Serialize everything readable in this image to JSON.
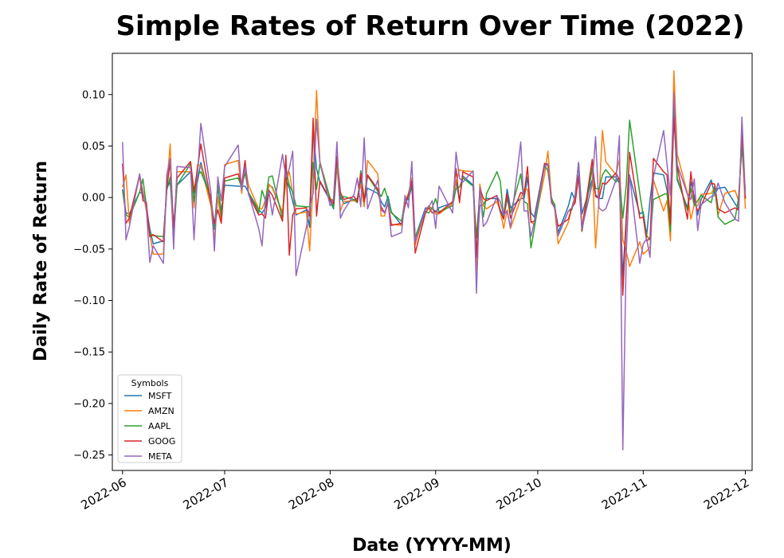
{
  "chart_data": {
    "type": "line",
    "title": "Simple Rates of Return Over Time (2022)",
    "xlabel": "Date (YYYY-MM)",
    "ylabel": "Daily Rate of Return",
    "x_ticks": [
      "2022-06",
      "2022-07",
      "2022-08",
      "2022-09",
      "2022-10",
      "2022-11",
      "2022-12"
    ],
    "y_ticks": [
      0.1,
      0.05,
      0.0,
      -0.05,
      -0.1,
      -0.15,
      -0.2,
      -0.25
    ],
    "y_tick_labels": [
      "0.10",
      "0.05",
      "0.00",
      "−0.05",
      "−0.10",
      "−0.15",
      "−0.20",
      "−0.25"
    ],
    "xlim": [
      "2022-05-29",
      "2022-12-03"
    ],
    "ylim": [
      -0.265,
      0.14
    ],
    "grid": false,
    "legend": {
      "title": "Symbols",
      "placement": "lower-left"
    },
    "x": [
      "2022-06-01",
      "2022-06-02",
      "2022-06-03",
      "2022-06-06",
      "2022-06-07",
      "2022-06-08",
      "2022-06-09",
      "2022-06-10",
      "2022-06-13",
      "2022-06-14",
      "2022-06-15",
      "2022-06-16",
      "2022-06-17",
      "2022-06-21",
      "2022-06-22",
      "2022-06-23",
      "2022-06-24",
      "2022-06-27",
      "2022-06-28",
      "2022-06-29",
      "2022-06-30",
      "2022-07-01",
      "2022-07-05",
      "2022-07-06",
      "2022-07-07",
      "2022-07-08",
      "2022-07-11",
      "2022-07-12",
      "2022-07-13",
      "2022-07-14",
      "2022-07-15",
      "2022-07-18",
      "2022-07-19",
      "2022-07-20",
      "2022-07-21",
      "2022-07-22",
      "2022-07-25",
      "2022-07-26",
      "2022-07-27",
      "2022-07-28",
      "2022-07-29",
      "2022-08-01",
      "2022-08-02",
      "2022-08-03",
      "2022-08-04",
      "2022-08-05",
      "2022-08-08",
      "2022-08-09",
      "2022-08-10",
      "2022-08-11",
      "2022-08-12",
      "2022-08-15",
      "2022-08-16",
      "2022-08-17",
      "2022-08-18",
      "2022-08-19",
      "2022-08-22",
      "2022-08-23",
      "2022-08-24",
      "2022-08-25",
      "2022-08-26",
      "2022-08-29",
      "2022-08-30",
      "2022-08-31",
      "2022-09-01",
      "2022-09-02",
      "2022-09-06",
      "2022-09-07",
      "2022-09-08",
      "2022-09-09",
      "2022-09-12",
      "2022-09-13",
      "2022-09-14",
      "2022-09-15",
      "2022-09-16",
      "2022-09-19",
      "2022-09-20",
      "2022-09-21",
      "2022-09-22",
      "2022-09-23",
      "2022-09-26",
      "2022-09-27",
      "2022-09-28",
      "2022-09-29",
      "2022-09-30",
      "2022-10-03",
      "2022-10-04",
      "2022-10-05",
      "2022-10-06",
      "2022-10-07",
      "2022-10-10",
      "2022-10-11",
      "2022-10-12",
      "2022-10-13",
      "2022-10-14",
      "2022-10-17",
      "2022-10-18",
      "2022-10-19",
      "2022-10-20",
      "2022-10-21",
      "2022-10-24",
      "2022-10-25",
      "2022-10-26",
      "2022-10-27",
      "2022-10-28",
      "2022-10-31",
      "2022-11-01",
      "2022-11-02",
      "2022-11-03",
      "2022-11-04",
      "2022-11-07",
      "2022-11-08",
      "2022-11-09",
      "2022-11-10",
      "2022-11-11",
      "2022-11-14",
      "2022-11-15",
      "2022-11-16",
      "2022-11-17",
      "2022-11-18",
      "2022-11-21",
      "2022-11-22",
      "2022-11-23",
      "2022-11-25",
      "2022-11-28",
      "2022-11-29",
      "2022-11-30",
      "2022-12-01"
    ],
    "series": [
      {
        "name": "MSFT",
        "color": "#1f77b4",
        "values": [
          0.008,
          -0.015,
          -0.016,
          0.005,
          0.004,
          -0.01,
          -0.03,
          -0.045,
          -0.042,
          0.009,
          0.015,
          -0.027,
          0.012,
          0.025,
          0.004,
          0.015,
          0.034,
          -0.005,
          -0.031,
          0.01,
          -0.013,
          0.012,
          0.011,
          0.011,
          0.011,
          0.005,
          -0.012,
          -0.015,
          -0.01,
          0.012,
          0.01,
          -0.015,
          0.018,
          0.009,
          -0.004,
          -0.017,
          -0.012,
          -0.029,
          0.067,
          0.028,
          0.015,
          -0.003,
          -0.011,
          0.031,
          0.002,
          -0.006,
          -0.002,
          -0.001,
          0.018,
          -0.004,
          0.009,
          0.004,
          -0.004,
          -0.009,
          0.001,
          -0.014,
          -0.027,
          -0.003,
          -0.002,
          0.011,
          -0.039,
          -0.01,
          -0.01,
          -0.01,
          -0.014,
          -0.01,
          -0.005,
          0.016,
          -0.003,
          0.021,
          0.012,
          -0.055,
          -0.008,
          -0.007,
          -0.001,
          -0.001,
          -0.012,
          -0.018,
          0.008,
          -0.01,
          -0.001,
          -0.001,
          0.02,
          -0.015,
          -0.019,
          0.033,
          0.031,
          0.0,
          -0.009,
          -0.034,
          -0.008,
          0.005,
          -0.003,
          0.034,
          -0.016,
          0.017,
          0.003,
          -0.001,
          -0.001,
          0.02,
          0.02,
          0.014,
          -0.077,
          -0.019,
          0.021,
          -0.016,
          -0.014,
          -0.037,
          -0.002,
          0.024,
          0.022,
          0.007,
          -0.019,
          0.082,
          0.017,
          -0.01,
          0.015,
          0.001,
          -0.017,
          -0.002,
          0.017,
          0.003,
          0.009,
          0.01,
          -0.006,
          -0.011,
          0.062,
          -0.001
        ]
      },
      {
        "name": "AMZN",
        "color": "#ff7f0e",
        "values": [
          0.01,
          0.022,
          -0.025,
          0.021,
          0.006,
          -0.013,
          -0.035,
          -0.055,
          -0.055,
          0.011,
          0.052,
          -0.043,
          0.025,
          0.025,
          -0.01,
          0.032,
          0.031,
          -0.009,
          -0.042,
          0.001,
          -0.024,
          0.032,
          0.036,
          0.004,
          0.031,
          0.012,
          -0.011,
          -0.011,
          -0.002,
          0.013,
          0.009,
          -0.014,
          0.015,
          0.025,
          0.004,
          -0.016,
          -0.014,
          -0.052,
          0.015,
          0.104,
          0.035,
          -0.001,
          -0.003,
          0.032,
          -0.013,
          -0.004,
          -0.003,
          -0.004,
          0.013,
          -0.009,
          0.036,
          0.023,
          -0.018,
          -0.018,
          -0.003,
          -0.026,
          -0.027,
          -0.004,
          0.004,
          0.019,
          -0.046,
          -0.012,
          -0.008,
          -0.011,
          -0.016,
          -0.016,
          -0.006,
          0.015,
          0.027,
          0.026,
          0.025,
          -0.07,
          0.013,
          -0.008,
          -0.011,
          -0.004,
          -0.013,
          -0.03,
          -0.012,
          -0.03,
          -0.001,
          0.008,
          0.008,
          -0.023,
          -0.027,
          0.022,
          0.045,
          0.001,
          -0.012,
          -0.045,
          -0.024,
          -0.01,
          -0.003,
          0.02,
          -0.028,
          0.033,
          -0.049,
          -0.002,
          0.065,
          0.035,
          0.022,
          0.037,
          -0.041,
          -0.052,
          -0.067,
          -0.043,
          -0.055,
          -0.052,
          -0.048,
          0.017,
          -0.013,
          -0.003,
          -0.042,
          0.123,
          0.042,
          0.004,
          -0.021,
          -0.007,
          -0.008,
          0.003,
          0.004,
          0.01,
          -0.017,
          0.004,
          0.007,
          -0.003,
          0.056,
          -0.011
        ]
      },
      {
        "name": "AAPL",
        "color": "#2ca02c",
        "values": [
          0.007,
          -0.017,
          -0.019,
          0.005,
          0.018,
          -0.008,
          -0.035,
          -0.037,
          -0.038,
          0.007,
          0.02,
          -0.04,
          0.012,
          0.033,
          -0.004,
          0.022,
          0.025,
          0.0,
          -0.03,
          0.013,
          -0.018,
          0.016,
          0.019,
          0.01,
          0.024,
          0.005,
          -0.015,
          0.007,
          -0.003,
          0.02,
          0.021,
          -0.021,
          0.027,
          0.012,
          0.005,
          -0.008,
          -0.009,
          -0.009,
          0.034,
          0.008,
          0.033,
          -0.001,
          -0.01,
          0.038,
          -0.002,
          0.001,
          -0.002,
          -0.005,
          0.026,
          -0.002,
          0.021,
          0.006,
          0.001,
          0.009,
          -0.002,
          -0.015,
          -0.023,
          -0.002,
          -0.001,
          0.015,
          -0.038,
          -0.014,
          -0.015,
          -0.01,
          -0.001,
          -0.014,
          -0.008,
          0.009,
          0.01,
          0.019,
          0.011,
          -0.039,
          0.005,
          -0.019,
          0.004,
          0.025,
          0.016,
          -0.02,
          -0.001,
          -0.015,
          0.023,
          -0.004,
          -0.006,
          -0.049,
          -0.03,
          0.031,
          0.026,
          -0.001,
          -0.007,
          -0.037,
          -0.013,
          -0.012,
          0.003,
          0.034,
          -0.033,
          0.028,
          0.009,
          0.008,
          0.022,
          0.027,
          0.015,
          0.019,
          -0.02,
          0.012,
          0.075,
          0.004,
          -0.018,
          -0.037,
          -0.041,
          -0.002,
          0.003,
          0.004,
          -0.033,
          0.088,
          0.019,
          -0.012,
          0.009,
          -0.008,
          -0.003,
          0.002,
          -0.005,
          0.011,
          -0.019,
          -0.026,
          -0.021,
          -0.001,
          0.049,
          0.007
        ]
      },
      {
        "name": "GOOG",
        "color": "#d62728",
        "values": [
          0.033,
          -0.025,
          -0.02,
          0.022,
          -0.003,
          -0.005,
          -0.038,
          -0.036,
          -0.043,
          0.009,
          0.035,
          -0.03,
          0.019,
          0.035,
          0.006,
          0.027,
          0.052,
          -0.005,
          -0.025,
          -0.012,
          -0.025,
          0.019,
          0.023,
          0.012,
          0.036,
          0.003,
          -0.017,
          -0.016,
          -0.02,
          0.007,
          0.002,
          -0.023,
          0.041,
          -0.056,
          -0.017,
          -0.011,
          -0.01,
          -0.018,
          0.077,
          -0.018,
          0.016,
          -0.002,
          -0.006,
          0.04,
          0.005,
          -0.002,
          0.001,
          -0.004,
          0.023,
          -0.004,
          0.022,
          0.008,
          -0.009,
          -0.015,
          -0.006,
          -0.027,
          -0.025,
          -0.008,
          0.003,
          0.016,
          -0.054,
          -0.015,
          -0.01,
          -0.015,
          -0.013,
          -0.015,
          -0.004,
          0.028,
          -0.005,
          0.025,
          0.02,
          -0.058,
          0.009,
          -0.001,
          -0.003,
          0.002,
          -0.014,
          -0.021,
          0.004,
          -0.02,
          0.005,
          0.003,
          0.03,
          -0.024,
          -0.023,
          0.033,
          0.032,
          -0.004,
          -0.01,
          -0.028,
          -0.021,
          -0.01,
          -0.005,
          0.021,
          -0.032,
          0.037,
          0.001,
          -0.001,
          0.014,
          0.013,
          0.024,
          0.017,
          -0.095,
          -0.022,
          0.044,
          -0.02,
          -0.019,
          -0.042,
          -0.04,
          0.038,
          0.025,
          0.022,
          -0.026,
          0.078,
          0.03,
          -0.021,
          0.025,
          -0.003,
          -0.013,
          -0.008,
          0.014,
          0.013,
          -0.011,
          -0.015,
          -0.01,
          -0.012,
          0.066,
          -0.001
        ]
      },
      {
        "name": "META",
        "color": "#9467bd",
        "values": [
          0.054,
          -0.041,
          -0.028,
          0.023,
          0.004,
          -0.01,
          -0.063,
          -0.047,
          -0.064,
          0.022,
          0.038,
          -0.05,
          0.03,
          0.029,
          -0.041,
          0.021,
          0.072,
          0.004,
          -0.052,
          0.02,
          -0.003,
          0.03,
          0.051,
          0.007,
          0.03,
          0.004,
          -0.03,
          -0.047,
          -0.001,
          0.006,
          -0.017,
          0.042,
          0.019,
          0.028,
          0.045,
          -0.076,
          -0.029,
          -0.01,
          0.004,
          0.076,
          0.034,
          -0.008,
          -0.001,
          0.054,
          -0.02,
          -0.013,
          0.003,
          0.019,
          -0.009,
          0.058,
          -0.011,
          0.017,
          -0.012,
          -0.015,
          -0.004,
          -0.038,
          -0.034,
          0.002,
          -0.01,
          0.035,
          -0.043,
          -0.012,
          -0.009,
          -0.003,
          -0.03,
          0.011,
          -0.015,
          0.044,
          0.019,
          0.015,
          0.026,
          -0.093,
          0.01,
          -0.028,
          -0.024,
          0.001,
          -0.004,
          -0.017,
          -0.013,
          -0.029,
          0.054,
          -0.013,
          -0.013,
          -0.038,
          -0.024,
          0.03,
          0.033,
          -0.005,
          -0.01,
          -0.037,
          -0.013,
          -0.01,
          0.002,
          0.034,
          -0.03,
          0.013,
          0.059,
          -0.01,
          -0.013,
          -0.011,
          0.017,
          0.06,
          -0.245,
          -0.054,
          0.022,
          -0.064,
          -0.045,
          -0.04,
          -0.058,
          0.02,
          0.065,
          0.032,
          0.002,
          0.102,
          0.032,
          0.003,
          -0.002,
          0.018,
          -0.032,
          -0.007,
          0.001,
          0.002,
          0.014,
          -0.005,
          -0.021,
          -0.023,
          0.078,
          0.002
        ]
      }
    ]
  }
}
